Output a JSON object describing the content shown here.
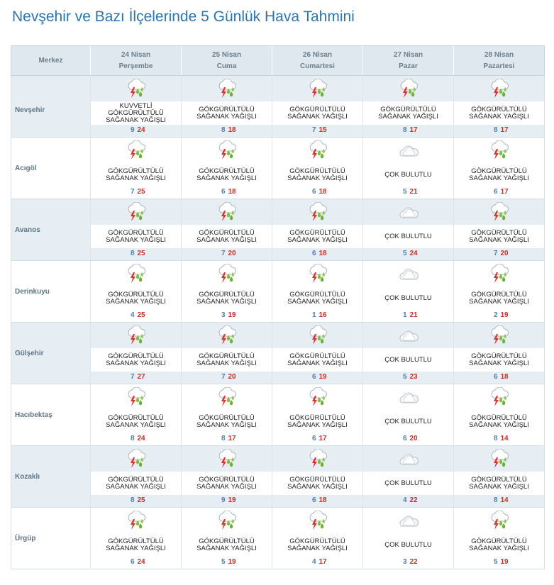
{
  "title": "Nevşehir ve Bazı İlçelerinde 5 Günlük Hava Tahmini",
  "header": {
    "location_label": "Merkez",
    "days": [
      {
        "date": "24 Nisan",
        "weekday": "Perşembe"
      },
      {
        "date": "25 Nisan",
        "weekday": "Cuma"
      },
      {
        "date": "26 Nisan",
        "weekday": "Cumartesi"
      },
      {
        "date": "27 Nisan",
        "weekday": "Pazar"
      },
      {
        "date": "28 Nisan",
        "weekday": "Pazartesi"
      }
    ]
  },
  "icons": {
    "storm": "thunderstorm-rain-icon",
    "cloudy": "very-cloudy-icon"
  },
  "colors": {
    "title": "#2a75b5",
    "min_temp": "#4a7eb8",
    "max_temp": "#c9302c",
    "row_shade": "#e6eef3"
  },
  "rows": [
    {
      "name": "Nevşehir",
      "days": [
        {
          "icon": "storm",
          "lines": [
            "KUVVETLİ",
            "GÖKGÜRÜLTÜLÜ",
            "SAĞANAK YAĞIŞLI"
          ],
          "min": "9",
          "max": "24"
        },
        {
          "icon": "storm",
          "lines": [
            "GÖKGÜRÜLTÜLÜ",
            "SAĞANAK YAĞIŞLI"
          ],
          "min": "8",
          "max": "18"
        },
        {
          "icon": "storm",
          "lines": [
            "GÖKGÜRÜLTÜLÜ",
            "SAĞANAK YAĞIŞLI"
          ],
          "min": "7",
          "max": "15"
        },
        {
          "icon": "storm",
          "lines": [
            "GÖKGÜRÜLTÜLÜ",
            "SAĞANAK YAĞIŞLI"
          ],
          "min": "8",
          "max": "17"
        },
        {
          "icon": "storm",
          "lines": [
            "GÖKGÜRÜLTÜLÜ",
            "SAĞANAK YAĞIŞLI"
          ],
          "min": "8",
          "max": "17"
        }
      ]
    },
    {
      "name": "Acıgöl",
      "days": [
        {
          "icon": "storm",
          "lines": [
            "GÖKGÜRÜLTÜLÜ",
            "SAĞANAK YAĞIŞLI"
          ],
          "min": "7",
          "max": "25"
        },
        {
          "icon": "storm",
          "lines": [
            "GÖKGÜRÜLTÜLÜ",
            "SAĞANAK YAĞIŞLI"
          ],
          "min": "6",
          "max": "18"
        },
        {
          "icon": "storm",
          "lines": [
            "GÖKGÜRÜLTÜLÜ",
            "SAĞANAK YAĞIŞLI"
          ],
          "min": "6",
          "max": "18"
        },
        {
          "icon": "cloudy",
          "lines": [
            "ÇOK BULUTLU"
          ],
          "min": "5",
          "max": "21"
        },
        {
          "icon": "storm",
          "lines": [
            "GÖKGÜRÜLTÜLÜ",
            "SAĞANAK YAĞIŞLI"
          ],
          "min": "6",
          "max": "17"
        }
      ]
    },
    {
      "name": "Avanos",
      "days": [
        {
          "icon": "storm",
          "lines": [
            "GÖKGÜRÜLTÜLÜ",
            "SAĞANAK YAĞIŞLI"
          ],
          "min": "8",
          "max": "25"
        },
        {
          "icon": "storm",
          "lines": [
            "GÖKGÜRÜLTÜLÜ",
            "SAĞANAK YAĞIŞLI"
          ],
          "min": "7",
          "max": "20"
        },
        {
          "icon": "storm",
          "lines": [
            "GÖKGÜRÜLTÜLÜ",
            "SAĞANAK YAĞIŞLI"
          ],
          "min": "6",
          "max": "18"
        },
        {
          "icon": "cloudy",
          "lines": [
            "ÇOK BULUTLU"
          ],
          "min": "5",
          "max": "24"
        },
        {
          "icon": "storm",
          "lines": [
            "GÖKGÜRÜLTÜLÜ",
            "SAĞANAK YAĞIŞLI"
          ],
          "min": "7",
          "max": "20"
        }
      ]
    },
    {
      "name": "Derinkuyu",
      "days": [
        {
          "icon": "storm",
          "lines": [
            "GÖKGÜRÜLTÜLÜ",
            "SAĞANAK YAĞIŞLI"
          ],
          "min": "4",
          "max": "25"
        },
        {
          "icon": "storm",
          "lines": [
            "GÖKGÜRÜLTÜLÜ",
            "SAĞANAK YAĞIŞLI"
          ],
          "min": "3",
          "max": "19"
        },
        {
          "icon": "storm",
          "lines": [
            "GÖKGÜRÜLTÜLÜ",
            "SAĞANAK YAĞIŞLI"
          ],
          "min": "1",
          "max": "16"
        },
        {
          "icon": "cloudy",
          "lines": [
            "ÇOK BULUTLU"
          ],
          "min": "1",
          "max": "21"
        },
        {
          "icon": "storm",
          "lines": [
            "GÖKGÜRÜLTÜLÜ",
            "SAĞANAK YAĞIŞLI"
          ],
          "min": "2",
          "max": "19"
        }
      ]
    },
    {
      "name": "Gülşehir",
      "days": [
        {
          "icon": "storm",
          "lines": [
            "GÖKGÜRÜLTÜLÜ",
            "SAĞANAK YAĞIŞLI"
          ],
          "min": "7",
          "max": "27"
        },
        {
          "icon": "storm",
          "lines": [
            "GÖKGÜRÜLTÜLÜ",
            "SAĞANAK YAĞIŞLI"
          ],
          "min": "7",
          "max": "20"
        },
        {
          "icon": "storm",
          "lines": [
            "GÖKGÜRÜLTÜLÜ",
            "SAĞANAK YAĞIŞLI"
          ],
          "min": "6",
          "max": "19"
        },
        {
          "icon": "cloudy",
          "lines": [
            "ÇOK BULUTLU"
          ],
          "min": "5",
          "max": "23"
        },
        {
          "icon": "storm",
          "lines": [
            "GÖKGÜRÜLTÜLÜ",
            "SAĞANAK YAĞIŞLI"
          ],
          "min": "6",
          "max": "18"
        }
      ]
    },
    {
      "name": "Hacıbektaş",
      "days": [
        {
          "icon": "storm",
          "lines": [
            "GÖKGÜRÜLTÜLÜ",
            "SAĞANAK YAĞIŞLI"
          ],
          "min": "8",
          "max": "24"
        },
        {
          "icon": "storm",
          "lines": [
            "GÖKGÜRÜLTÜLÜ",
            "SAĞANAK YAĞIŞLI"
          ],
          "min": "8",
          "max": "17"
        },
        {
          "icon": "storm",
          "lines": [
            "GÖKGÜRÜLTÜLÜ",
            "SAĞANAK YAĞIŞLI"
          ],
          "min": "6",
          "max": "17"
        },
        {
          "icon": "cloudy",
          "lines": [
            "ÇOK BULUTLU"
          ],
          "min": "6",
          "max": "20"
        },
        {
          "icon": "storm",
          "lines": [
            "GÖKGÜRÜLTÜLÜ",
            "SAĞANAK YAĞIŞLI"
          ],
          "min": "8",
          "max": "14"
        }
      ]
    },
    {
      "name": "Kozaklı",
      "days": [
        {
          "icon": "storm",
          "lines": [
            "GÖKGÜRÜLTÜLÜ",
            "SAĞANAK YAĞIŞLI"
          ],
          "min": "8",
          "max": "25"
        },
        {
          "icon": "storm",
          "lines": [
            "GÖKGÜRÜLTÜLÜ",
            "SAĞANAK YAĞIŞLI"
          ],
          "min": "9",
          "max": "19"
        },
        {
          "icon": "storm",
          "lines": [
            "GÖKGÜRÜLTÜLÜ",
            "SAĞANAK YAĞIŞLI"
          ],
          "min": "6",
          "max": "18"
        },
        {
          "icon": "cloudy",
          "lines": [
            "ÇOK BULUTLU"
          ],
          "min": "4",
          "max": "22"
        },
        {
          "icon": "storm",
          "lines": [
            "GÖKGÜRÜLTÜLÜ",
            "SAĞANAK YAĞIŞLI"
          ],
          "min": "8",
          "max": "14"
        }
      ]
    },
    {
      "name": "Ürgüp",
      "days": [
        {
          "icon": "storm",
          "lines": [
            "GÖKGÜRÜLTÜLÜ",
            "SAĞANAK YAĞIŞLI"
          ],
          "min": "6",
          "max": "24"
        },
        {
          "icon": "storm",
          "lines": [
            "GÖKGÜRÜLTÜLÜ",
            "SAĞANAK YAĞIŞLI"
          ],
          "min": "5",
          "max": "19"
        },
        {
          "icon": "storm",
          "lines": [
            "GÖKGÜRÜLTÜLÜ",
            "SAĞANAK YAĞIŞLI"
          ],
          "min": "4",
          "max": "17"
        },
        {
          "icon": "cloudy",
          "lines": [
            "ÇOK BULUTLU"
          ],
          "min": "3",
          "max": "22"
        },
        {
          "icon": "storm",
          "lines": [
            "GÖKGÜRÜLTÜLÜ",
            "SAĞANAK YAĞIŞLI"
          ],
          "min": "5",
          "max": "19"
        }
      ]
    }
  ]
}
